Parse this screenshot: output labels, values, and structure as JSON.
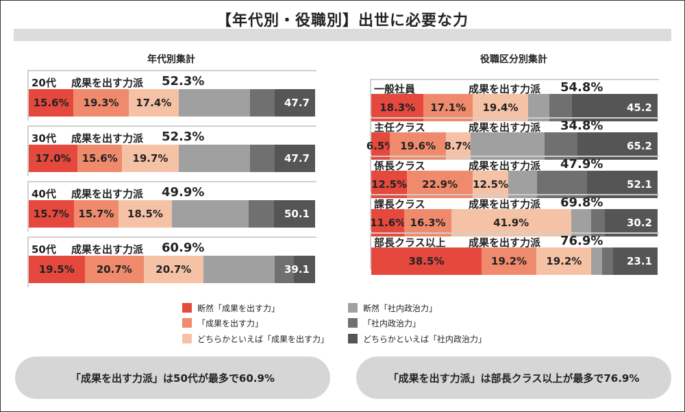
{
  "title": "【年代別・役職別】出世に必要な力",
  "left_subtitle": "年代別集計",
  "right_subtitle": "役職区分別集計",
  "legend": [
    {
      "label": "断然「成果を出す力」",
      "color": "#e5483d"
    },
    {
      "label": "「成果を出す力」",
      "color": "#f08a6c"
    },
    {
      "label": "どちらかといえば「成果を出す力」",
      "color": "#f6c2a6"
    },
    {
      "label": "断然「社内政治力」",
      "color": "#a0a0a0"
    },
    {
      "label": "「社内政治力」",
      "color": "#707070"
    },
    {
      "label": "どちらかといえば「社内政治力」",
      "color": "#555555"
    }
  ],
  "chart_data": [
    {
      "type": "bar",
      "stacked": true,
      "orientation": "horizontal",
      "title": "年代別集計",
      "series_names": [
        "断然「成果を出す力」",
        "「成果を出す力」",
        "どちらかといえば「成果を出す力」",
        "断然「社内政治力」",
        "「社内政治力」",
        "どちらかといえば「社内政治力」"
      ],
      "groups": [
        {
          "label": "20代",
          "tag": "成果を出す力派",
          "pct": "52.3%",
          "values": [
            15.6,
            19.3,
            17.4,
            24.9,
            8.6,
            14.2
          ],
          "labels": [
            "15.6%",
            "19.3%",
            "17.4%",
            "",
            "",
            ""
          ],
          "right_label": "47.7"
        },
        {
          "label": "30代",
          "tag": "成果を出す力派",
          "pct": "52.3%",
          "values": [
            17.0,
            15.6,
            19.7,
            24.9,
            8.6,
            14.2
          ],
          "labels": [
            "17.0%",
            "15.6%",
            "19.7%",
            "",
            "",
            ""
          ],
          "right_label": "47.7"
        },
        {
          "label": "40代",
          "tag": "成果を出す力派",
          "pct": "49.9%",
          "values": [
            15.7,
            15.7,
            18.5,
            27.0,
            8.8,
            14.3
          ],
          "labels": [
            "15.7%",
            "15.7%",
            "18.5%",
            "",
            "",
            ""
          ],
          "right_label": "50.1"
        },
        {
          "label": "50代",
          "tag": "成果を出す力派",
          "pct": "60.9%",
          "values": [
            19.5,
            20.7,
            20.7,
            25.0,
            6.8,
            7.3
          ],
          "labels": [
            "19.5%",
            "20.7%",
            "20.7%",
            "",
            "",
            ""
          ],
          "right_label": "39.1"
        }
      ]
    },
    {
      "type": "bar",
      "stacked": true,
      "orientation": "horizontal",
      "title": "役職区分別集計",
      "series_names": [
        "断然「成果を出す力」",
        "「成果を出す力」",
        "どちらかといえば「成果を出す力」",
        "断然「社内政治力」",
        "「社内政治力」",
        "どちらかといえば「社内政治力」"
      ],
      "groups": [
        {
          "label": "一般社員",
          "tag": "成果を出す力派",
          "pct": "54.8%",
          "values": [
            18.3,
            17.1,
            19.4,
            7.3,
            8.0,
            29.9
          ],
          "labels": [
            "18.3%",
            "17.1%",
            "19.4%",
            "",
            "",
            ""
          ],
          "right_label": "45.2"
        },
        {
          "label": "主任クラス",
          "tag": "成果を出す力派",
          "pct": "34.8%",
          "values": [
            6.5,
            19.6,
            8.7,
            25.8,
            11.3,
            28.1
          ],
          "labels": [
            "6.5%",
            "19.6%",
            "8.7%",
            "",
            "",
            ""
          ],
          "right_label": "65.2"
        },
        {
          "label": "係長クラス",
          "tag": "成果を出す力派",
          "pct": "47.9%",
          "values": [
            12.5,
            22.9,
            12.5,
            10.1,
            17.4,
            24.6
          ],
          "labels": [
            "12.5%",
            "22.9%",
            "12.5%",
            "",
            "",
            ""
          ],
          "right_label": "52.1"
        },
        {
          "label": "課長クラス",
          "tag": "成果を出す力派",
          "pct": "69.8%",
          "values": [
            11.6,
            16.3,
            41.9,
            7.0,
            4.7,
            18.5
          ],
          "labels": [
            "11.6%",
            "16.3%",
            "41.9%",
            "",
            "",
            ""
          ],
          "right_label": "30.2"
        },
        {
          "label": "部長クラス以上",
          "tag": "成果を出す力派",
          "pct": "76.9%",
          "values": [
            38.5,
            19.2,
            19.2,
            3.8,
            3.8,
            15.5
          ],
          "labels": [
            "38.5%",
            "19.2%",
            "19.2%",
            "",
            "",
            ""
          ],
          "right_label": "23.1"
        }
      ]
    }
  ],
  "notes": {
    "left": "「成果を出す力派」は50代が最多で60.9%",
    "right": "「成果を出す力派」は部長クラス以上が最多で76.9%"
  }
}
